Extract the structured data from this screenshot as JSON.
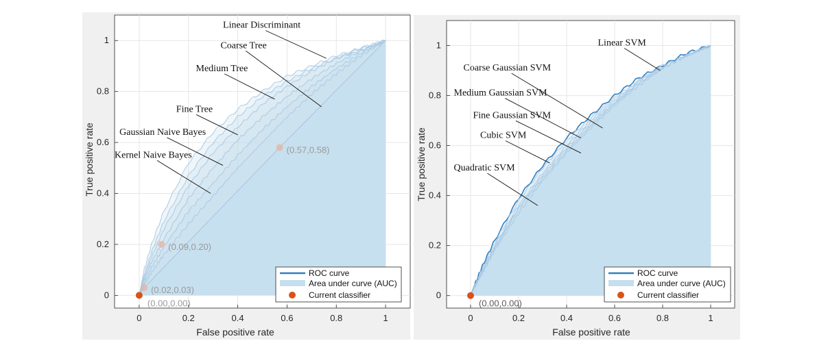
{
  "chart_data": [
    {
      "type": "line",
      "xlabel": "False positive rate",
      "ylabel": "True positive rate",
      "xlim": [
        -0.1,
        1.1
      ],
      "ylim": [
        -0.05,
        1.1
      ],
      "xticks": [
        "0",
        "0.2",
        "0.4",
        "0.6",
        "0.8",
        "1"
      ],
      "yticks": [
        "0",
        "0.2",
        "0.4",
        "0.6",
        "0.8",
        "1"
      ],
      "grid": true,
      "series": [
        {
          "name": "Linear Discriminant",
          "x": [
            0,
            0.02,
            0.05,
            0.1,
            0.2,
            0.3,
            0.4,
            0.5,
            0.6,
            0.7,
            0.8,
            0.9,
            1
          ],
          "y": [
            0,
            0.1,
            0.2,
            0.33,
            0.52,
            0.64,
            0.73,
            0.8,
            0.86,
            0.9,
            0.94,
            0.97,
            1
          ]
        },
        {
          "name": "Coarse Tree",
          "x": [
            0,
            0.02,
            0.05,
            0.1,
            0.2,
            0.3,
            0.4,
            0.5,
            0.6,
            0.7,
            0.8,
            0.9,
            1
          ],
          "y": [
            0,
            0.08,
            0.17,
            0.29,
            0.47,
            0.6,
            0.7,
            0.78,
            0.84,
            0.89,
            0.93,
            0.97,
            1
          ]
        },
        {
          "name": "Medium Tree",
          "x": [
            0,
            0.02,
            0.05,
            0.1,
            0.2,
            0.3,
            0.4,
            0.5,
            0.6,
            0.7,
            0.8,
            0.9,
            1
          ],
          "y": [
            0,
            0.07,
            0.15,
            0.26,
            0.43,
            0.56,
            0.66,
            0.75,
            0.82,
            0.88,
            0.93,
            0.96,
            1
          ]
        },
        {
          "name": "Fine Tree",
          "x": [
            0,
            0.02,
            0.05,
            0.1,
            0.2,
            0.3,
            0.4,
            0.5,
            0.6,
            0.7,
            0.8,
            0.9,
            1
          ],
          "y": [
            0,
            0.06,
            0.13,
            0.22,
            0.38,
            0.5,
            0.61,
            0.7,
            0.78,
            0.85,
            0.91,
            0.96,
            1
          ]
        },
        {
          "name": "Gaussian Naive Bayes",
          "x": [
            0,
            0.02,
            0.05,
            0.1,
            0.2,
            0.3,
            0.4,
            0.5,
            0.6,
            0.7,
            0.8,
            0.9,
            1
          ],
          "y": [
            0,
            0.05,
            0.11,
            0.19,
            0.33,
            0.44,
            0.55,
            0.65,
            0.74,
            0.82,
            0.89,
            0.95,
            1
          ]
        },
        {
          "name": "Kernel Naive Bayes",
          "x": [
            0,
            0.02,
            0.05,
            0.1,
            0.2,
            0.3,
            0.4,
            0.5,
            0.6,
            0.7,
            0.8,
            0.9,
            1
          ],
          "y": [
            0,
            0.04,
            0.09,
            0.16,
            0.28,
            0.39,
            0.5,
            0.6,
            0.7,
            0.79,
            0.87,
            0.94,
            1
          ]
        }
      ],
      "auc_curve": {
        "x": [
          0,
          0.02,
          0.57,
          1
        ],
        "y": [
          0,
          0.03,
          0.58,
          1
        ]
      },
      "points": [
        {
          "x": 0.57,
          "y": 0.58,
          "label": "(0.57,0.58)"
        },
        {
          "x": 0.09,
          "y": 0.2,
          "label": "(0.09,0.20)"
        },
        {
          "x": 0.02,
          "y": 0.03,
          "label": "(0.02,0.03)"
        },
        {
          "x": 0,
          "y": 0,
          "label": "(0.00,0.00)"
        }
      ],
      "current_point": {
        "x": 0,
        "y": 0
      },
      "annotations": [
        {
          "text": "Linear Discriminant",
          "tx": 0.34,
          "ty": 1.05,
          "px": 0.76,
          "py": 0.93
        },
        {
          "text": "Coarse Tree",
          "tx": 0.33,
          "ty": 0.97,
          "px": 0.74,
          "py": 0.74
        },
        {
          "text": "Medium Tree",
          "tx": 0.23,
          "ty": 0.88,
          "px": 0.55,
          "py": 0.77
        },
        {
          "text": "Fine Tree",
          "tx": 0.15,
          "ty": 0.72,
          "px": 0.4,
          "py": 0.63
        },
        {
          "text": "Gaussian Naive Bayes",
          "tx": -0.08,
          "ty": 0.63,
          "px": 0.34,
          "py": 0.51
        },
        {
          "text": "Kernel Naive Bayes",
          "tx": -0.1,
          "ty": 0.54,
          "px": 0.29,
          "py": 0.4
        }
      ],
      "legend": {
        "placement": "bottom-right",
        "entries": [
          "ROC curve",
          "Area under curve (AUC)",
          "Current classifier"
        ]
      }
    },
    {
      "type": "line",
      "xlabel": "False positive rate",
      "ylabel": "True positive rate",
      "xlim": [
        -0.1,
        1.1
      ],
      "ylim": [
        -0.05,
        1.1
      ],
      "xticks": [
        "0",
        "0.2",
        "0.4",
        "0.6",
        "0.8",
        "1"
      ],
      "yticks": [
        "0",
        "0.2",
        "0.4",
        "0.6",
        "0.8",
        "1"
      ],
      "grid": true,
      "series": [
        {
          "name": "Linear SVM",
          "x": [
            0,
            0.02,
            0.05,
            0.1,
            0.2,
            0.3,
            0.4,
            0.5,
            0.6,
            0.7,
            0.8,
            0.9,
            1
          ],
          "y": [
            0,
            0.05,
            0.12,
            0.22,
            0.39,
            0.52,
            0.63,
            0.72,
            0.8,
            0.87,
            0.92,
            0.97,
            1
          ]
        },
        {
          "name": "Coarse Gaussian SVM",
          "x": [
            0,
            0.02,
            0.05,
            0.1,
            0.2,
            0.3,
            0.4,
            0.5,
            0.6,
            0.7,
            0.8,
            0.9,
            1
          ],
          "y": [
            0,
            0.05,
            0.11,
            0.21,
            0.38,
            0.51,
            0.62,
            0.71,
            0.79,
            0.86,
            0.92,
            0.96,
            1
          ]
        },
        {
          "name": "Medium Gaussian SVM",
          "x": [
            0,
            0.02,
            0.05,
            0.1,
            0.2,
            0.3,
            0.4,
            0.5,
            0.6,
            0.7,
            0.8,
            0.9,
            1
          ],
          "y": [
            0,
            0.04,
            0.1,
            0.2,
            0.36,
            0.49,
            0.6,
            0.7,
            0.78,
            0.86,
            0.92,
            0.96,
            1
          ]
        },
        {
          "name": "Fine Gaussian SVM",
          "x": [
            0,
            0.02,
            0.05,
            0.1,
            0.2,
            0.3,
            0.4,
            0.5,
            0.6,
            0.7,
            0.8,
            0.9,
            1
          ],
          "y": [
            0,
            0.04,
            0.1,
            0.19,
            0.35,
            0.48,
            0.59,
            0.69,
            0.77,
            0.85,
            0.91,
            0.96,
            1
          ]
        },
        {
          "name": "Cubic SVM",
          "x": [
            0,
            0.02,
            0.05,
            0.1,
            0.2,
            0.3,
            0.4,
            0.5,
            0.6,
            0.7,
            0.8,
            0.9,
            1
          ],
          "y": [
            0,
            0.04,
            0.09,
            0.18,
            0.33,
            0.46,
            0.57,
            0.67,
            0.76,
            0.84,
            0.91,
            0.96,
            1
          ]
        },
        {
          "name": "Quadratic SVM",
          "x": [
            0,
            0.02,
            0.05,
            0.1,
            0.2,
            0.3,
            0.4,
            0.5,
            0.6,
            0.7,
            0.8,
            0.9,
            1
          ],
          "y": [
            0,
            0.04,
            0.1,
            0.19,
            0.35,
            0.47,
            0.58,
            0.68,
            0.77,
            0.85,
            0.91,
            0.96,
            1
          ]
        }
      ],
      "points": [
        {
          "x": 0,
          "y": 0,
          "label": "(0.00,0.00)"
        }
      ],
      "current_point": {
        "x": 0,
        "y": 0
      },
      "annotations": [
        {
          "text": "Linear SVM",
          "tx": 0.53,
          "ty": 1.0,
          "px": 0.79,
          "py": 0.9
        },
        {
          "text": "Coarse Gaussian SVM",
          "tx": -0.03,
          "ty": 0.9,
          "px": 0.55,
          "py": 0.67
        },
        {
          "text": "Medium Gaussian SVM",
          "tx": -0.07,
          "ty": 0.8,
          "px": 0.46,
          "py": 0.63
        },
        {
          "text": "Fine Gaussian SVM",
          "tx": 0.01,
          "ty": 0.71,
          "px": 0.46,
          "py": 0.57
        },
        {
          "text": "Cubic SVM",
          "tx": 0.04,
          "ty": 0.63,
          "px": 0.33,
          "py": 0.53
        },
        {
          "text": "Quadratic SVM",
          "tx": -0.07,
          "ty": 0.5,
          "px": 0.28,
          "py": 0.36
        }
      ],
      "legend": {
        "placement": "bottom-right",
        "entries": [
          "ROC curve",
          "Area under curve (AUC)",
          "Current classifier"
        ]
      }
    }
  ],
  "colors": {
    "roc_line": "#2f7fc1",
    "roc_line_faint": "#a9c9e3",
    "auc_fill": "#c5dfee",
    "current_classifier": "#d95319",
    "faded_marker": "#e9b3a0",
    "faded_label": "#9a9a9a",
    "label_text": "#595959"
  }
}
